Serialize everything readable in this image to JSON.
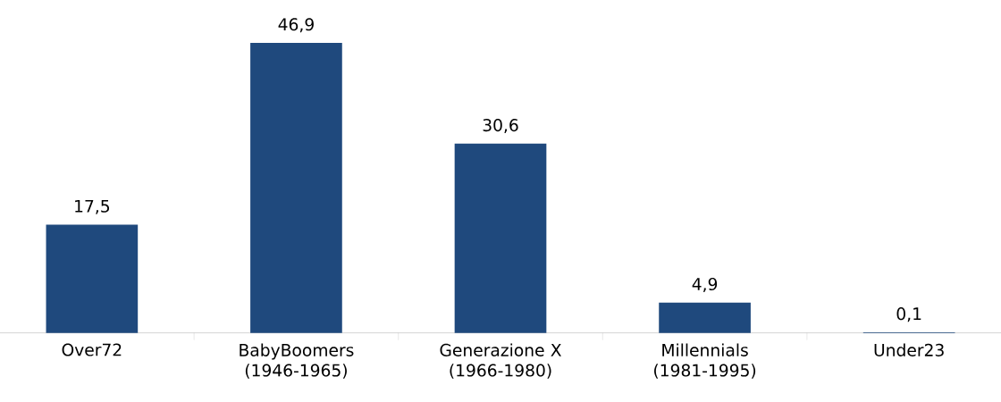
{
  "chart_data": {
    "type": "bar",
    "categories": [
      "Over72",
      "BabyBoomers (1946-1965)",
      "Generazione X (1966-1980)",
      "Millennials (1981-1995)",
      "Under23"
    ],
    "values": [
      17.5,
      46.9,
      30.6,
      4.9,
      0.1
    ],
    "value_labels": [
      "17,5",
      "46,9",
      "30,6",
      "4,9",
      "0,1"
    ],
    "color": "#1f497d"
  }
}
